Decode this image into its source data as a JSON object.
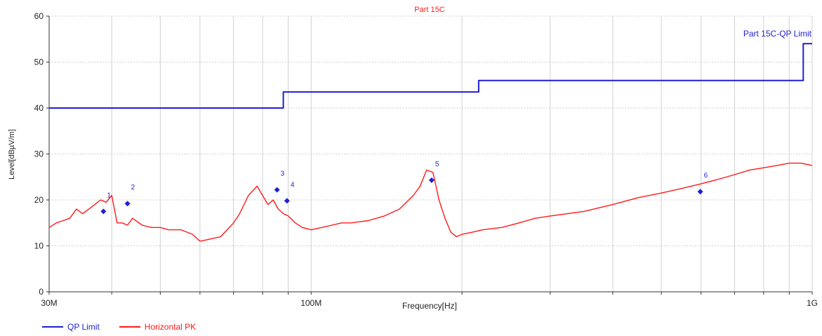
{
  "chart_data": {
    "type": "line",
    "title": "Part 15C",
    "xlabel": "Frequency[Hz]",
    "ylabel": "Level[dBµV/m]",
    "x_scale": "log",
    "xlim": [
      30,
      1000
    ],
    "ylim": [
      0,
      60
    ],
    "y_ticks": [
      0,
      10,
      20,
      30,
      40,
      50,
      60
    ],
    "x_tick_labels": [
      {
        "value": 30,
        "label": "30M"
      },
      {
        "value": 100,
        "label": "100M"
      },
      {
        "value": 1000,
        "label": "1G"
      }
    ],
    "x_minor_ticks": [
      40,
      50,
      60,
      70,
      80,
      90,
      200,
      300,
      400,
      500,
      600,
      700,
      800,
      900
    ],
    "grid": true,
    "limit_label": "Part 15C-QP Limit",
    "series": [
      {
        "name": "QP Limit",
        "color": "#1f1fd6",
        "x": [
          30,
          88,
          88,
          216,
          216,
          960,
          960,
          1000
        ],
        "values": [
          40,
          40,
          43.5,
          43.5,
          46,
          46,
          54,
          54
        ]
      },
      {
        "name": "Horizontal PK",
        "color": "#ff1a1a",
        "x": [
          30,
          31,
          32,
          33,
          34,
          35,
          36,
          37,
          38,
          39,
          40,
          41,
          42,
          43,
          44,
          46,
          48,
          50,
          52,
          55,
          58,
          60,
          63,
          66,
          70,
          72,
          75,
          78,
          80,
          82,
          84,
          86,
          88,
          90,
          93,
          96,
          100,
          105,
          110,
          115,
          120,
          130,
          140,
          150,
          160,
          165,
          170,
          175,
          180,
          185,
          190,
          195,
          200,
          210,
          220,
          240,
          260,
          280,
          300,
          350,
          400,
          450,
          500,
          550,
          600,
          650,
          700,
          750,
          800,
          850,
          900,
          950,
          1000
        ],
        "values": [
          14,
          15,
          15.5,
          16,
          18,
          17,
          18,
          19,
          20,
          19.5,
          21,
          15,
          15,
          14.5,
          16,
          14.5,
          14,
          14,
          13.5,
          13.5,
          12.5,
          11,
          11.5,
          12,
          15,
          17,
          21,
          23,
          21,
          19,
          20,
          18,
          17,
          16.5,
          15,
          14,
          13.5,
          14,
          14.5,
          15,
          15,
          15.5,
          16.5,
          18,
          21,
          23,
          26.5,
          26,
          20,
          16,
          13,
          12,
          12.5,
          13,
          13.5,
          14,
          15,
          16,
          16.5,
          17.5,
          19,
          20.5,
          21.5,
          22.5,
          23.5,
          24.5,
          25.5,
          26.5,
          27,
          27.5,
          28,
          28,
          27.5
        ]
      }
    ],
    "markers": [
      {
        "label": "1",
        "x": 38.5,
        "y": 17.5
      },
      {
        "label": "2",
        "x": 43.0,
        "y": 19.2
      },
      {
        "label": "3",
        "x": 85.5,
        "y": 22.2
      },
      {
        "label": "4",
        "x": 89.5,
        "y": 19.8
      },
      {
        "label": "5",
        "x": 174.0,
        "y": 24.3
      },
      {
        "label": "6",
        "x": 598.0,
        "y": 21.8
      }
    ]
  }
}
